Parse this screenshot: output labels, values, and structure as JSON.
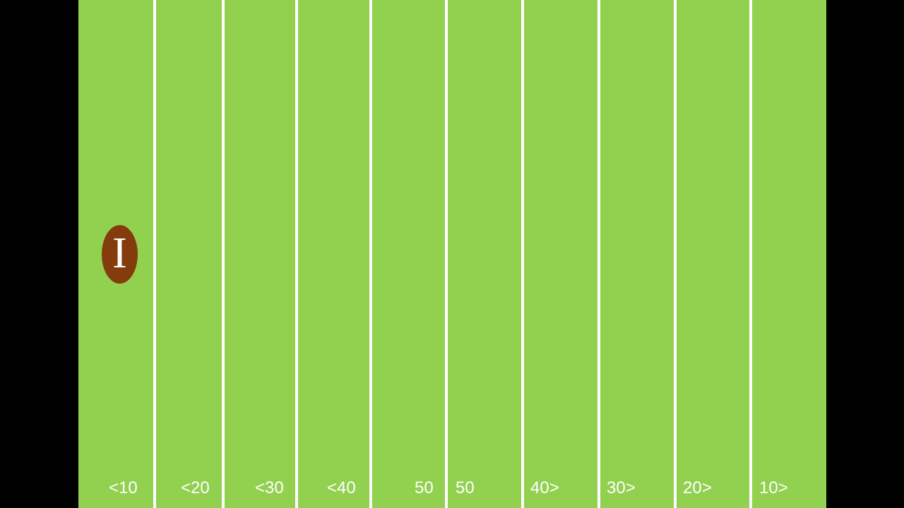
{
  "colors": {
    "background": "#000000",
    "field": "#92d050",
    "lines": "#ffffff",
    "ball": "#843c0c",
    "text": "#ffffff"
  },
  "yard_labels": [
    "<10",
    "<20",
    "<30",
    "<40",
    "50",
    "50",
    "40>",
    "30>",
    "20>",
    "10>"
  ],
  "football": {
    "letter": "I"
  }
}
